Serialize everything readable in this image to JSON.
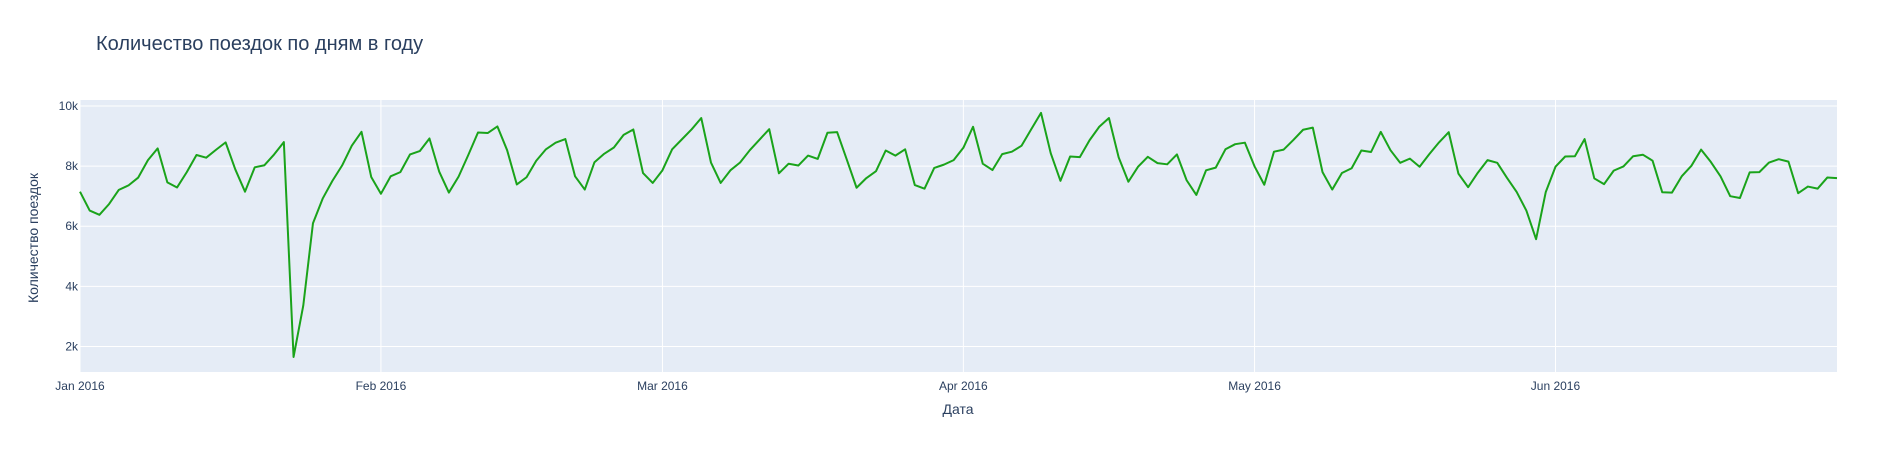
{
  "chart_data": {
    "type": "line",
    "title": "Количество поездок по дням в году",
    "xlabel": "Дата",
    "ylabel": "Количество поездок",
    "x_ticks": [
      {
        "date": "2016-01-01",
        "label": "Jan 2016"
      },
      {
        "date": "2016-02-01",
        "label": "Feb 2016"
      },
      {
        "date": "2016-03-01",
        "label": "Mar 2016"
      },
      {
        "date": "2016-04-01",
        "label": "Apr 2016"
      },
      {
        "date": "2016-05-01",
        "label": "May 2016"
      },
      {
        "date": "2016-06-01",
        "label": "Jun 2016"
      }
    ],
    "y_ticks": [
      {
        "value": 2000,
        "label": "2k"
      },
      {
        "value": 4000,
        "label": "4k"
      },
      {
        "value": 6000,
        "label": "6k"
      },
      {
        "value": 8000,
        "label": "8k"
      },
      {
        "value": 10000,
        "label": "10k"
      }
    ],
    "xlim": [
      "2016-01-01",
      "2016-06-30"
    ],
    "ylim": [
      1150,
      10200
    ],
    "grid": true,
    "colors": {
      "line": "#1aa31a",
      "plot_bg": "#e5ecf6",
      "grid": "#ffffff",
      "text": "#2a3f5f"
    },
    "x_start": "2016-01-01",
    "values": [
      7150,
      6520,
      6380,
      6740,
      7210,
      7360,
      7620,
      8200,
      8590,
      7460,
      7290,
      7800,
      8370,
      8280,
      8540,
      8790,
      7890,
      7150,
      7960,
      8030,
      8390,
      8800,
      1650,
      3360,
      6100,
      6920,
      7510,
      8020,
      8680,
      9140,
      7640,
      7080,
      7660,
      7800,
      8390,
      8500,
      8920,
      7820,
      7120,
      7650,
      8370,
      9120,
      9100,
      9320,
      8530,
      7390,
      7630,
      8180,
      8560,
      8780,
      8900,
      7660,
      7220,
      8130,
      8410,
      8620,
      9040,
      9220,
      7770,
      7440,
      7860,
      8560,
      8890,
      9220,
      9600,
      8120,
      7440,
      7860,
      8120,
      8530,
      8880,
      9230,
      7760,
      8080,
      8020,
      8350,
      8240,
      9110,
      9130,
      8210,
      7280,
      7600,
      7830,
      8520,
      8350,
      8560,
      7370,
      7250,
      7940,
      8050,
      8200,
      8610,
      9310,
      8080,
      7870,
      8400,
      8480,
      8680,
      9230,
      9770,
      8430,
      7510,
      8320,
      8300,
      8860,
      9310,
      9600,
      8290,
      7480,
      7980,
      8310,
      8100,
      8060,
      8390,
      7530,
      7040,
      7860,
      7950,
      8560,
      8730,
      8780,
      7990,
      7380,
      8480,
      8550,
      8870,
      9210,
      9280,
      7800,
      7220,
      7770,
      7930,
      8520,
      8470,
      9140,
      8530,
      8110,
      8250,
      7980,
      8400,
      8790,
      9130,
      7750,
      7300,
      7780,
      8200,
      8110,
      7610,
      7140,
      6520,
      5570,
      7140,
      7980,
      8320,
      8330,
      8900,
      7590,
      7400,
      7850,
      7990,
      8330,
      8380,
      8180,
      7130,
      7120,
      7660,
      8010,
      8550,
      8140,
      7660,
      7000,
      6940,
      7790,
      7800,
      8120,
      8230,
      8150,
      7100,
      7320,
      7250,
      7620,
      7600
    ]
  }
}
